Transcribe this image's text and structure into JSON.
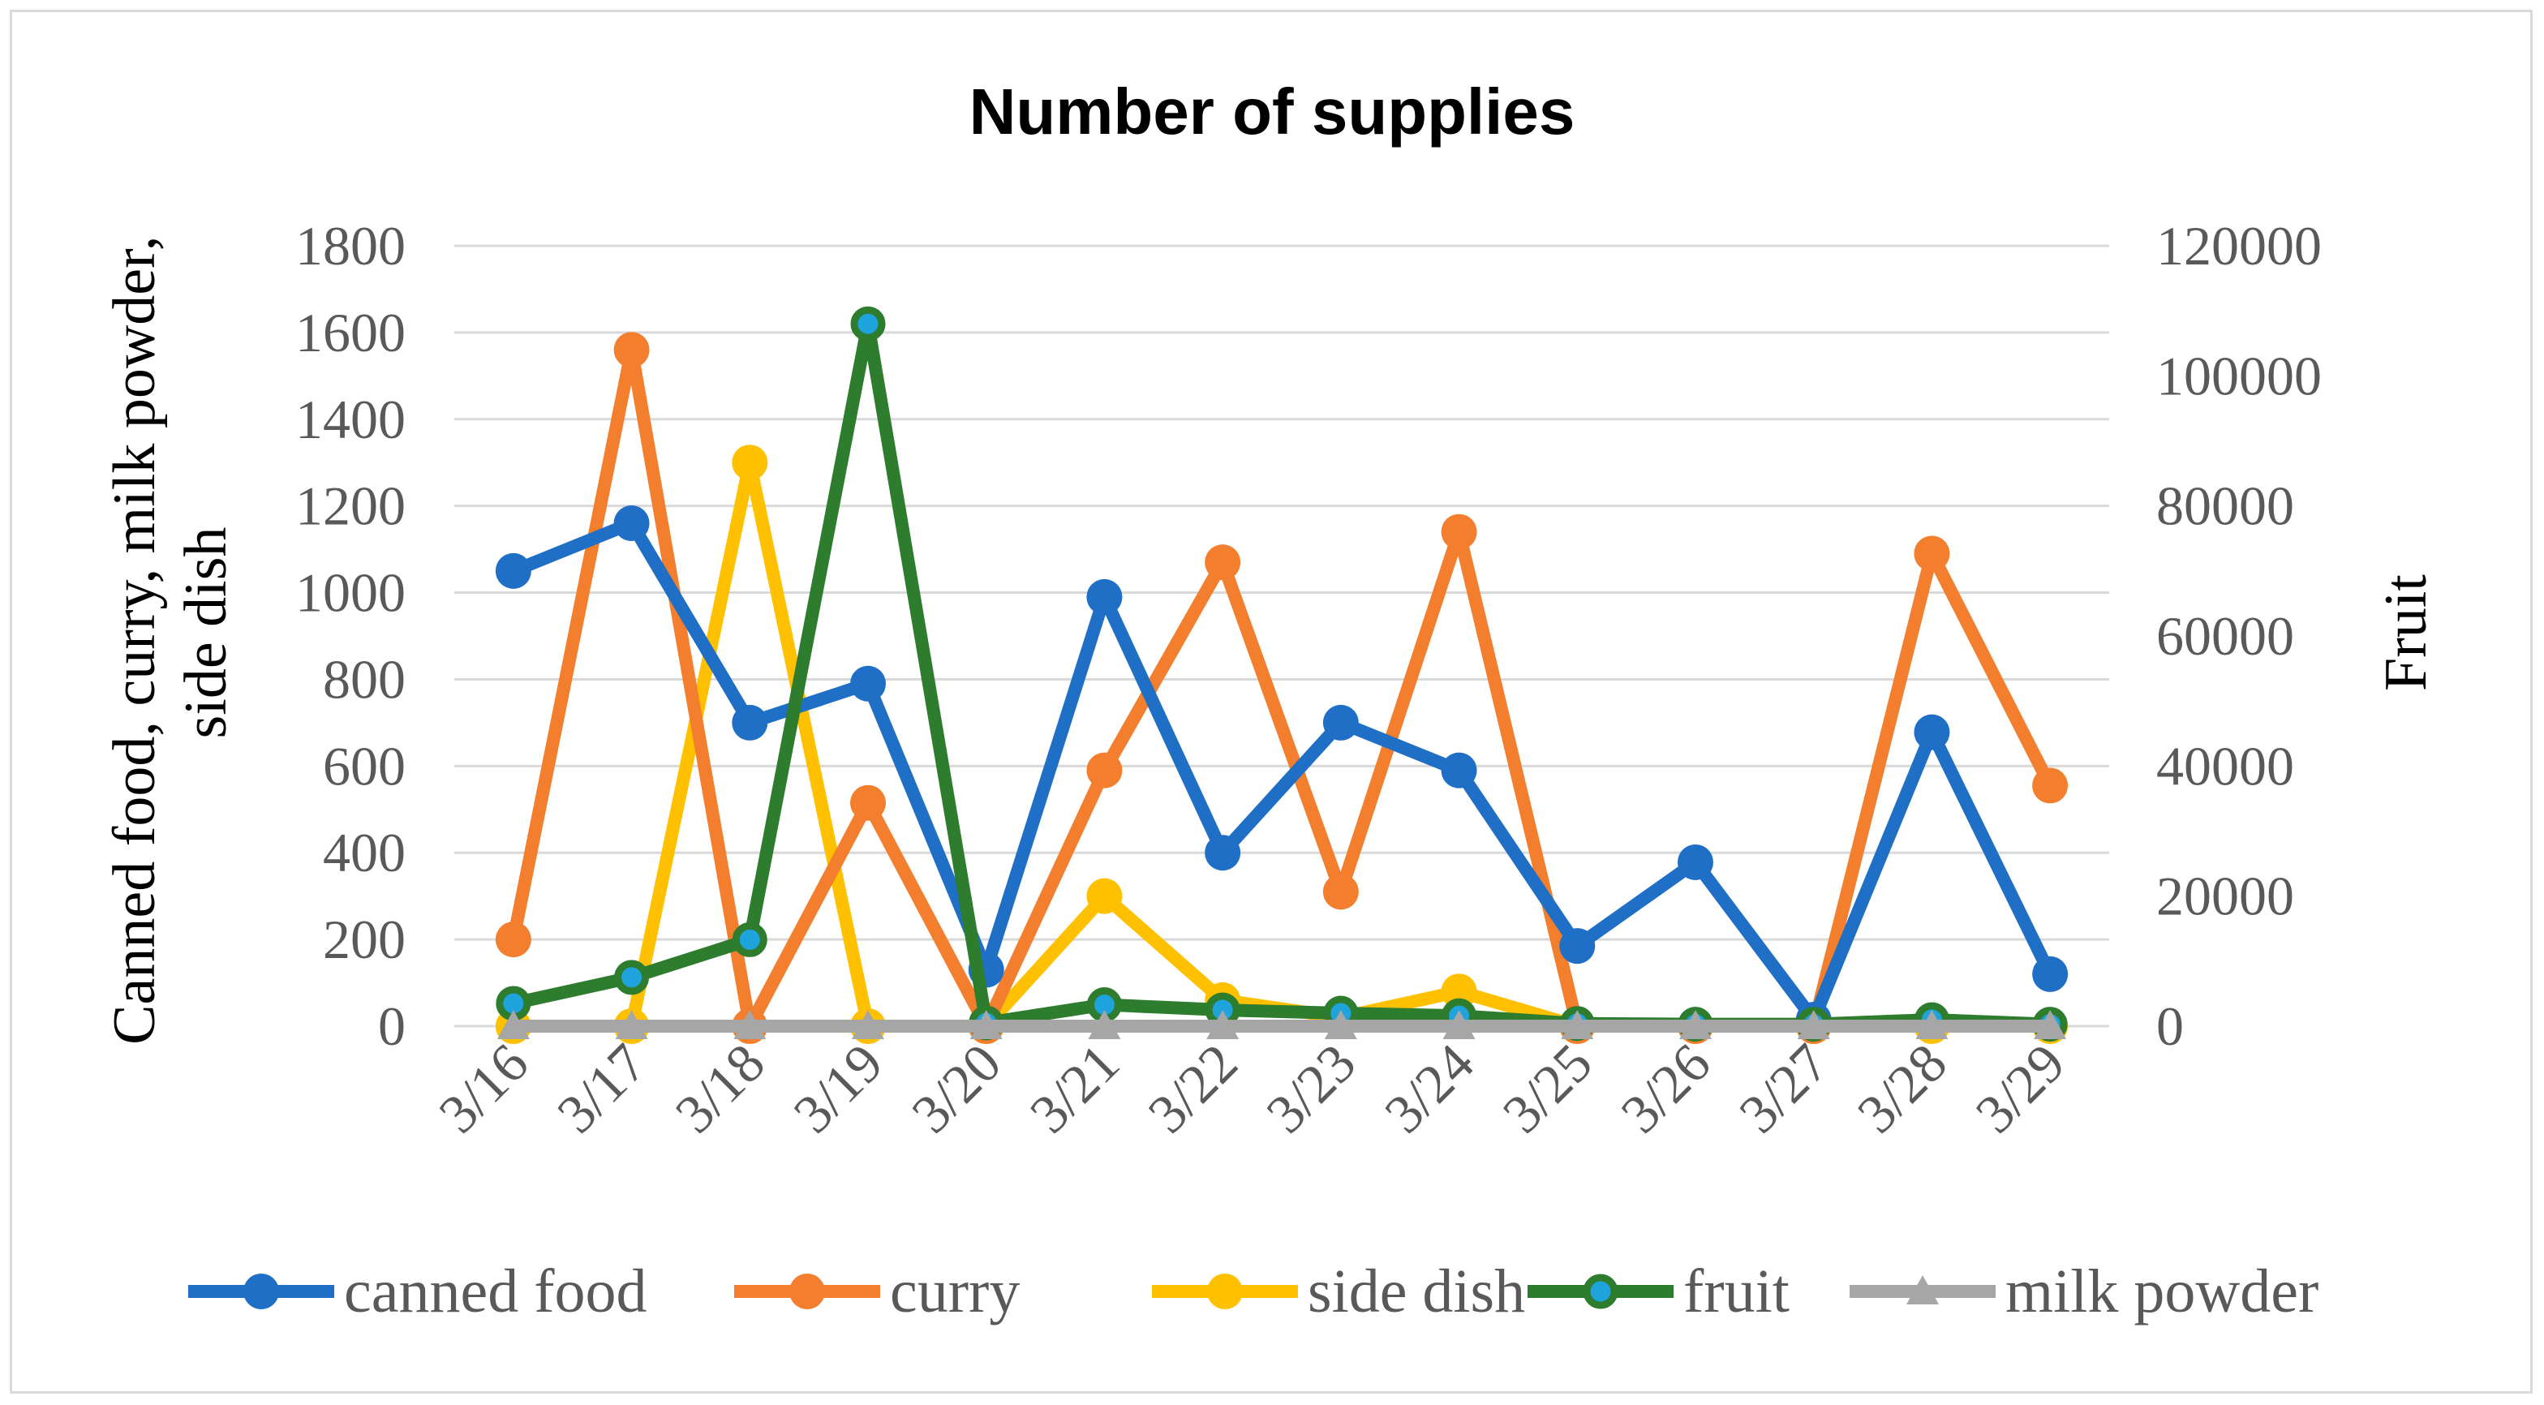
{
  "chart_data": {
    "type": "line",
    "title": "Number of supplies",
    "categories": [
      "3/16",
      "3/17",
      "3/18",
      "3/19",
      "3/20",
      "3/21",
      "3/22",
      "3/23",
      "3/24",
      "3/25",
      "3/26",
      "3/27",
      "3/28",
      "3/29"
    ],
    "y_left": {
      "label": "Canned food, curry, milk powder, side dish",
      "label_lines": [
        "Canned food, curry, milk powder,",
        "side dish"
      ],
      "range": [
        0,
        1800
      ],
      "ticks": [
        "0",
        "200",
        "400",
        "600",
        "800",
        "1000",
        "1200",
        "1400",
        "1600",
        "1800"
      ]
    },
    "y_right": {
      "label": "Fruit",
      "range": [
        0,
        120000
      ],
      "ticks": [
        "0",
        "20000",
        "40000",
        "60000",
        "80000",
        "100000",
        "120000"
      ]
    },
    "grid": true,
    "legend_position": "bottom",
    "series": [
      {
        "name": "canned food",
        "axis": "left",
        "color": "#1f6fc6",
        "marker": "circle",
        "values": [
          1050,
          1160,
          700,
          790,
          130,
          990,
          400,
          700,
          590,
          185,
          378,
          15,
          678,
          120
        ]
      },
      {
        "name": "curry",
        "axis": "left",
        "color": "#f27e2e",
        "marker": "circle",
        "values": [
          200,
          1560,
          0,
          515,
          0,
          590,
          1070,
          310,
          1140,
          0,
          0,
          0,
          1090,
          555
        ]
      },
      {
        "name": "side dish",
        "axis": "left",
        "color": "#ffc000",
        "marker": "circle",
        "values": [
          0,
          0,
          1300,
          0,
          0,
          300,
          60,
          20,
          80,
          0,
          0,
          0,
          0,
          0
        ]
      },
      {
        "name": "fruit",
        "axis": "right",
        "color": "#2e7d2e",
        "marker": "circle-blue-fill",
        "fill": "#1fa3dc",
        "values": [
          3500,
          7500,
          13300,
          108000,
          500,
          3300,
          2500,
          2000,
          1600,
          400,
          300,
          300,
          1000,
          300
        ]
      },
      {
        "name": "milk powder",
        "axis": "left",
        "color": "#a6a6a6",
        "marker": "triangle",
        "values": [
          0,
          0,
          0,
          0,
          0,
          0,
          0,
          0,
          0,
          0,
          0,
          0,
          0,
          0
        ]
      }
    ]
  }
}
